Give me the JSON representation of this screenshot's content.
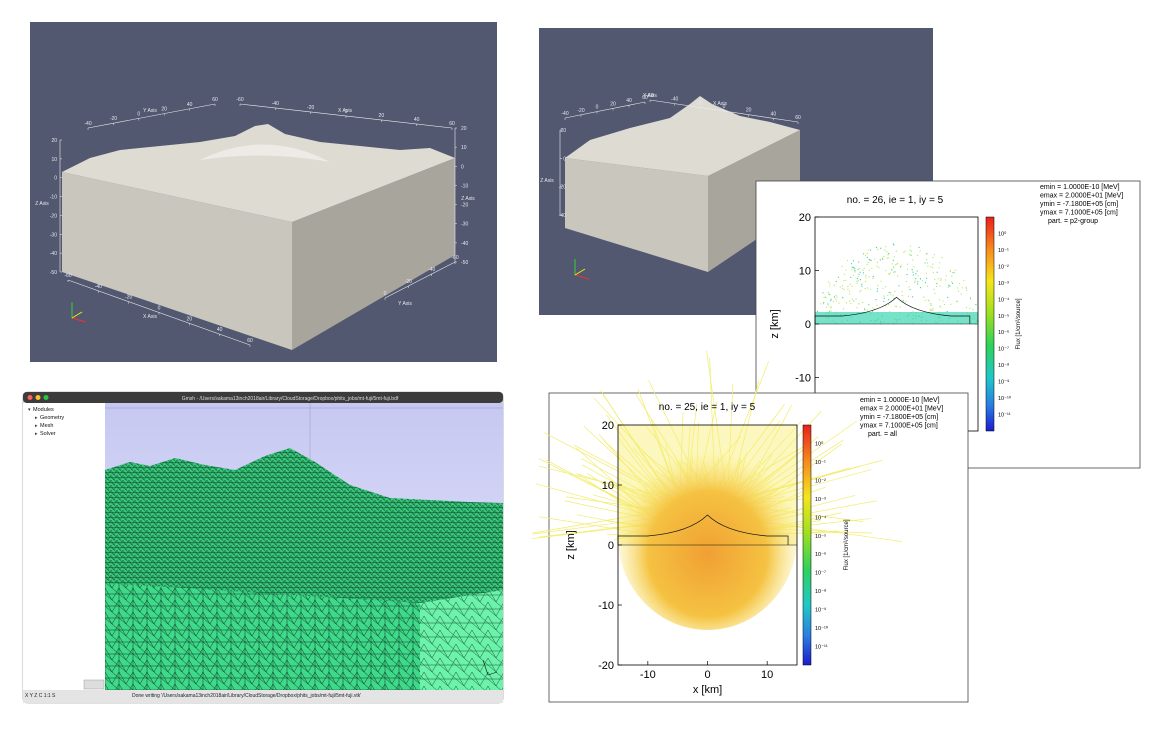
{
  "paraview_views": [
    {
      "axes": [
        {
          "title": "Y Axis",
          "ticks": [
            -40,
            -20,
            0,
            20,
            40,
            60
          ]
        },
        {
          "title": "X Axis",
          "ticks": [
            -60,
            -40,
            -20,
            0,
            20,
            40,
            60
          ]
        },
        {
          "title": "Z Axis",
          "ticks": [
            20,
            10,
            0,
            -10,
            -20,
            -30,
            -40,
            -50
          ]
        },
        {
          "title": "Z Axis",
          "ticks": [
            20,
            10,
            0,
            -10,
            -20,
            -30,
            -40,
            -50
          ]
        },
        {
          "title": "X Axis",
          "ticks": [
            -60,
            -40,
            -20,
            0,
            20,
            40,
            60
          ]
        },
        {
          "title": "Y Axis",
          "ticks": [
            0,
            -20,
            -40,
            -60
          ]
        }
      ]
    },
    {
      "axes": [
        {
          "title": "Y Axis",
          "ticks": [
            -40,
            -20,
            0,
            20,
            40,
            60
          ]
        },
        {
          "title": "X Axis",
          "ticks": [
            -60,
            -40,
            -20,
            0,
            20,
            40,
            60
          ]
        },
        {
          "title": "Z Axis",
          "ticks": [
            20,
            0,
            -20,
            -40
          ]
        }
      ]
    }
  ],
  "gmsh": {
    "title": "Gmsh - /Users/sakama13inch2018air/Library/CloudStorage/Dropbox/phits_jobs/mt-fuji/5mt-fuji.bdf",
    "tree": [
      "Modules",
      "Geometry",
      "Mesh",
      "Solver"
    ],
    "status_buttons": "X Y Z C 1:1 S",
    "status": "Done writing '/Users/sakama13inch2018air/Library/CloudStorage/Dropbox/phits_jobs/mt-fuji/5mt-fuji.vtk'"
  },
  "phits_plots": [
    {
      "title": "no. = 26,  ie = 1,  iy = 5",
      "info": [
        "emin  =  1.0000E-10 [MeV]",
        "emax  =  2.0000E+01 [MeV]",
        "ymin  =  -7.1800E+05 [cm]",
        "ymax  =  7.1000E+05 [cm]",
        "part. = p2-group"
      ],
      "ylabel": "z [km]",
      "ylim": [
        -20,
        20
      ],
      "yticks": [
        20,
        10,
        0,
        -10
      ],
      "colorbar_label": "Flux [1/cm²/source]",
      "colorbar_ticks": [
        "10⁰",
        "10⁻¹",
        "10⁻²",
        "10⁻³",
        "10⁻⁴",
        "10⁻⁵",
        "10⁻⁶",
        "10⁻⁷",
        "10⁻⁸",
        "10⁻⁹",
        "10⁻¹⁰",
        "10⁻¹¹"
      ]
    },
    {
      "title": "no. = 25,  ie = 1,  iy = 5",
      "info": [
        "emin  =  1.0000E-10 [MeV]",
        "emax  =  2.0000E+01 [MeV]",
        "ymin  =  -7.1800E+05 [cm]",
        "ymax  =  7.1000E+05 [cm]",
        "part. = all"
      ],
      "ylabel": "z [km]",
      "xlabel": "x [km]",
      "xlim": [
        -15,
        15
      ],
      "xticks": [
        -10,
        0,
        10
      ],
      "ylim": [
        -20,
        20
      ],
      "yticks": [
        20,
        10,
        0,
        -10,
        -20
      ],
      "colorbar_label": "Flux [1/cm²/source]",
      "colorbar_ticks": [
        "10⁰",
        "10⁻¹",
        "10⁻²",
        "10⁻³",
        "10⁻⁴",
        "10⁻⁵",
        "10⁻⁶",
        "10⁻⁷",
        "10⁻⁸",
        "10⁻⁹",
        "10⁻¹⁰",
        "10⁻¹¹"
      ]
    }
  ]
}
